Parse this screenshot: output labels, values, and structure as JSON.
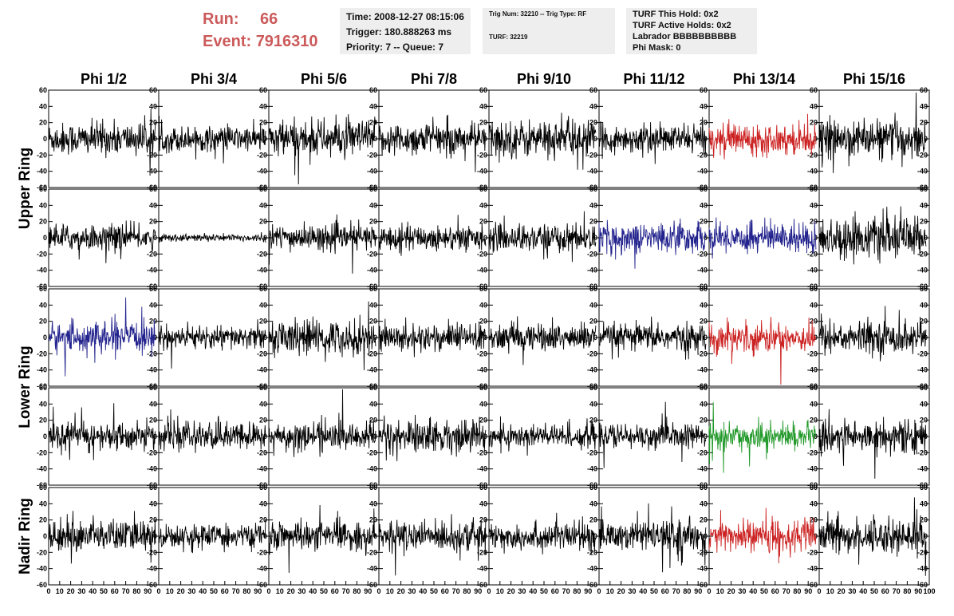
{
  "header": {
    "run_label": "Run:",
    "run_value": "66",
    "event_label": "Event:",
    "event_value": "7916310",
    "time": "Time: 2008-12-27 08:15:06",
    "trigger": "Trigger: 180.888263 ms",
    "priority": "Priority: 7 -- Queue: 7",
    "trig_num": "Trig Num: 32210 -- Trig Type: RF",
    "turf": "TURF: 32219",
    "turf_hold": "TURF This Hold: 0x2",
    "turf_active": "TURF Active Holds: 0x2",
    "labrador": "Labrador BBBBBBBBBB",
    "phi_mask": "Phi Mask: 0"
  },
  "chart_data": {
    "type": "line",
    "columns": [
      "Phi 1/2",
      "Phi 3/4",
      "Phi 5/6",
      "Phi 7/8",
      "Phi 9/10",
      "Phi 11/12",
      "Phi 13/14",
      "Phi 15/16"
    ],
    "row_groups": [
      {
        "label": "Upper Ring",
        "rows": [
          0,
          1
        ]
      },
      {
        "label": "Lower Ring",
        "rows": [
          2,
          3
        ]
      },
      {
        "label": "Nadir Ring",
        "rows": [
          4
        ]
      }
    ],
    "xlim": [
      0,
      100
    ],
    "ylim": [
      -60,
      60
    ],
    "y_ticks": [
      "60",
      "40",
      "20",
      "0",
      "-20",
      "-40",
      "-60"
    ],
    "x_ticks": [
      "0",
      "10",
      "20",
      "30",
      "40",
      "50",
      "60",
      "70",
      "80",
      "90",
      "100"
    ],
    "amplitude": [
      [
        13,
        10,
        15,
        13,
        15,
        11,
        12,
        15
      ],
      [
        10,
        3,
        10,
        10,
        11,
        12,
        12,
        16
      ],
      [
        12,
        9,
        14,
        11,
        11,
        11,
        12,
        13
      ],
      [
        11,
        11,
        11,
        13,
        10,
        10,
        10,
        13
      ],
      [
        13,
        9,
        11,
        12,
        11,
        12,
        13,
        14
      ]
    ],
    "colors": [
      [
        "#000000",
        "#000000",
        "#000000",
        "#000000",
        "#000000",
        "#000000",
        "#cc2222",
        "#000000"
      ],
      [
        "#000000",
        "#000000",
        "#000000",
        "#000000",
        "#000000",
        "#23238e",
        "#23238e",
        "#000000"
      ],
      [
        "#23238e",
        "#000000",
        "#000000",
        "#000000",
        "#000000",
        "#000000",
        "#cc2222",
        "#000000"
      ],
      [
        "#000000",
        "#000000",
        "#000000",
        "#000000",
        "#000000",
        "#000000",
        "#22992a",
        "#000000"
      ],
      [
        "#000000",
        "#000000",
        "#000000",
        "#000000",
        "#000000",
        "#000000",
        "#cc2222",
        "#000000"
      ]
    ],
    "samples_per_trace": 260
  }
}
